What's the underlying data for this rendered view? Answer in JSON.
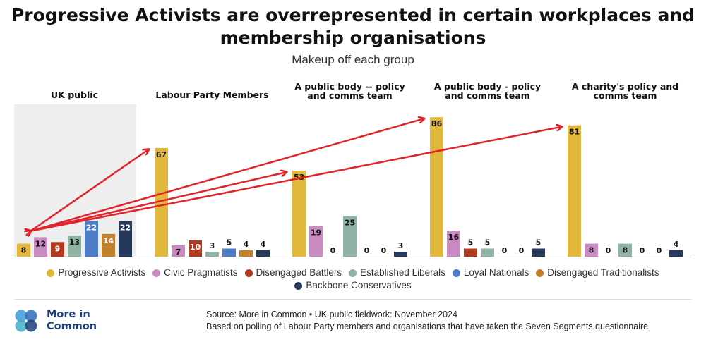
{
  "title_line1": "Progressive Activists are overrepresented in certain workplaces and",
  "title_line2": "membership organisations",
  "subtitle": "Makeup off each group",
  "colors": {
    "Progressive Activists": "#e2b83c",
    "Civic Pragmatists": "#c98ac2",
    "Disengaged Battlers": "#b0391f",
    "Established Liberals": "#8fb3a2",
    "Loyal Nationals": "#4b7cc5",
    "Disengaged Traditionalists": "#c2802d",
    "Backbone Conservatives": "#27395a",
    "highlight_bg": "#eeeeee",
    "arrow": "#e0242b"
  },
  "chart_data": {
    "type": "bar",
    "highlighted_group": "UK public",
    "groups": [
      {
        "name": "UK public",
        "values": [
          8,
          12,
          9,
          13,
          22,
          14,
          22
        ]
      },
      {
        "name": "Labour Party Members",
        "values": [
          67,
          7,
          10,
          3,
          5,
          4,
          4
        ]
      },
      {
        "name": "A public body -- policy and comms team",
        "values": [
          53,
          19,
          0,
          25,
          0,
          0,
          3
        ]
      },
      {
        "name": "A public body - policy and comms team",
        "values": [
          86,
          16,
          5,
          5,
          0,
          0,
          5
        ]
      },
      {
        "name": "A charity's policy and comms team",
        "values": [
          81,
          8,
          0,
          8,
          0,
          0,
          4
        ]
      }
    ],
    "series": [
      {
        "name": "Progressive Activists"
      },
      {
        "name": "Civic Pragmatists"
      },
      {
        "name": "Disengaged Battlers"
      },
      {
        "name": "Established Liberals"
      },
      {
        "name": "Loyal Nationals"
      },
      {
        "name": "Disengaged Traditionalists"
      },
      {
        "name": "Backbone Conservatives"
      }
    ],
    "ylim": [
      0,
      100
    ],
    "annotations": "red arrows from UK public Progressive Activists value to each group's Progressive Activists value"
  },
  "legend": {
    "row1": [
      "Progressive Activists",
      "Civic Pragmatists",
      "Disengaged Battlers",
      "Established Liberals",
      "Loyal Nationals",
      "Disengaged Traditionalists"
    ],
    "row2": [
      "Backbone Conservatives"
    ]
  },
  "logo": {
    "line1": "More in",
    "line2": "Common"
  },
  "source": {
    "line1": "Source: More in Common • UK public fieldwork: November 2024",
    "line2": "Based on polling of Labour Party members and organisations that have taken the Seven Segments questionnaire"
  }
}
